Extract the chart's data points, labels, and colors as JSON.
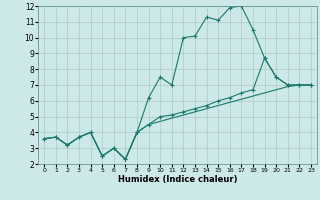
{
  "xlabel": "Humidex (Indice chaleur)",
  "bg_color": "#cde8e8",
  "grid_color": "#b0c8c8",
  "line_color": "#1a7a6a",
  "xlim": [
    -0.5,
    23.5
  ],
  "ylim": [
    2,
    12
  ],
  "xticks": [
    0,
    1,
    2,
    3,
    4,
    5,
    6,
    7,
    8,
    9,
    10,
    11,
    12,
    13,
    14,
    15,
    16,
    17,
    18,
    19,
    20,
    21,
    22,
    23
  ],
  "yticks": [
    2,
    3,
    4,
    5,
    6,
    7,
    8,
    9,
    10,
    11,
    12
  ],
  "line1_x": [
    0,
    1,
    2,
    3,
    4,
    5,
    6,
    7,
    8,
    9,
    10,
    11,
    12,
    13,
    14,
    15,
    16,
    17,
    18,
    19,
    20,
    21,
    22,
    23
  ],
  "line1_y": [
    3.6,
    3.7,
    3.2,
    3.7,
    4.0,
    2.5,
    3.0,
    2.3,
    4.0,
    6.2,
    7.5,
    7.0,
    10.0,
    10.1,
    11.3,
    11.1,
    11.9,
    12.0,
    10.5,
    8.7,
    7.5,
    7.0,
    7.0,
    7.0
  ],
  "line2_x": [
    0,
    1,
    2,
    3,
    4,
    5,
    6,
    7,
    8,
    9,
    10,
    11,
    12,
    13,
    14,
    15,
    16,
    17,
    18,
    19,
    20,
    21,
    22,
    23
  ],
  "line2_y": [
    3.6,
    3.7,
    3.2,
    3.7,
    4.0,
    2.5,
    3.0,
    2.3,
    4.0,
    4.5,
    5.0,
    5.1,
    5.3,
    5.5,
    5.7,
    6.0,
    6.2,
    6.5,
    6.7,
    8.7,
    7.5,
    7.0,
    7.0,
    7.0
  ],
  "line3_x": [
    0,
    1,
    2,
    3,
    4,
    5,
    6,
    7,
    8,
    9,
    10,
    11,
    12,
    13,
    14,
    15,
    16,
    17,
    18,
    19,
    20,
    21,
    22,
    23
  ],
  "line3_y": [
    3.6,
    3.7,
    3.2,
    3.7,
    4.0,
    2.5,
    3.0,
    2.3,
    4.0,
    4.5,
    4.7,
    4.9,
    5.1,
    5.3,
    5.5,
    5.7,
    5.9,
    6.1,
    6.3,
    6.5,
    6.7,
    6.9,
    7.0,
    7.0
  ]
}
